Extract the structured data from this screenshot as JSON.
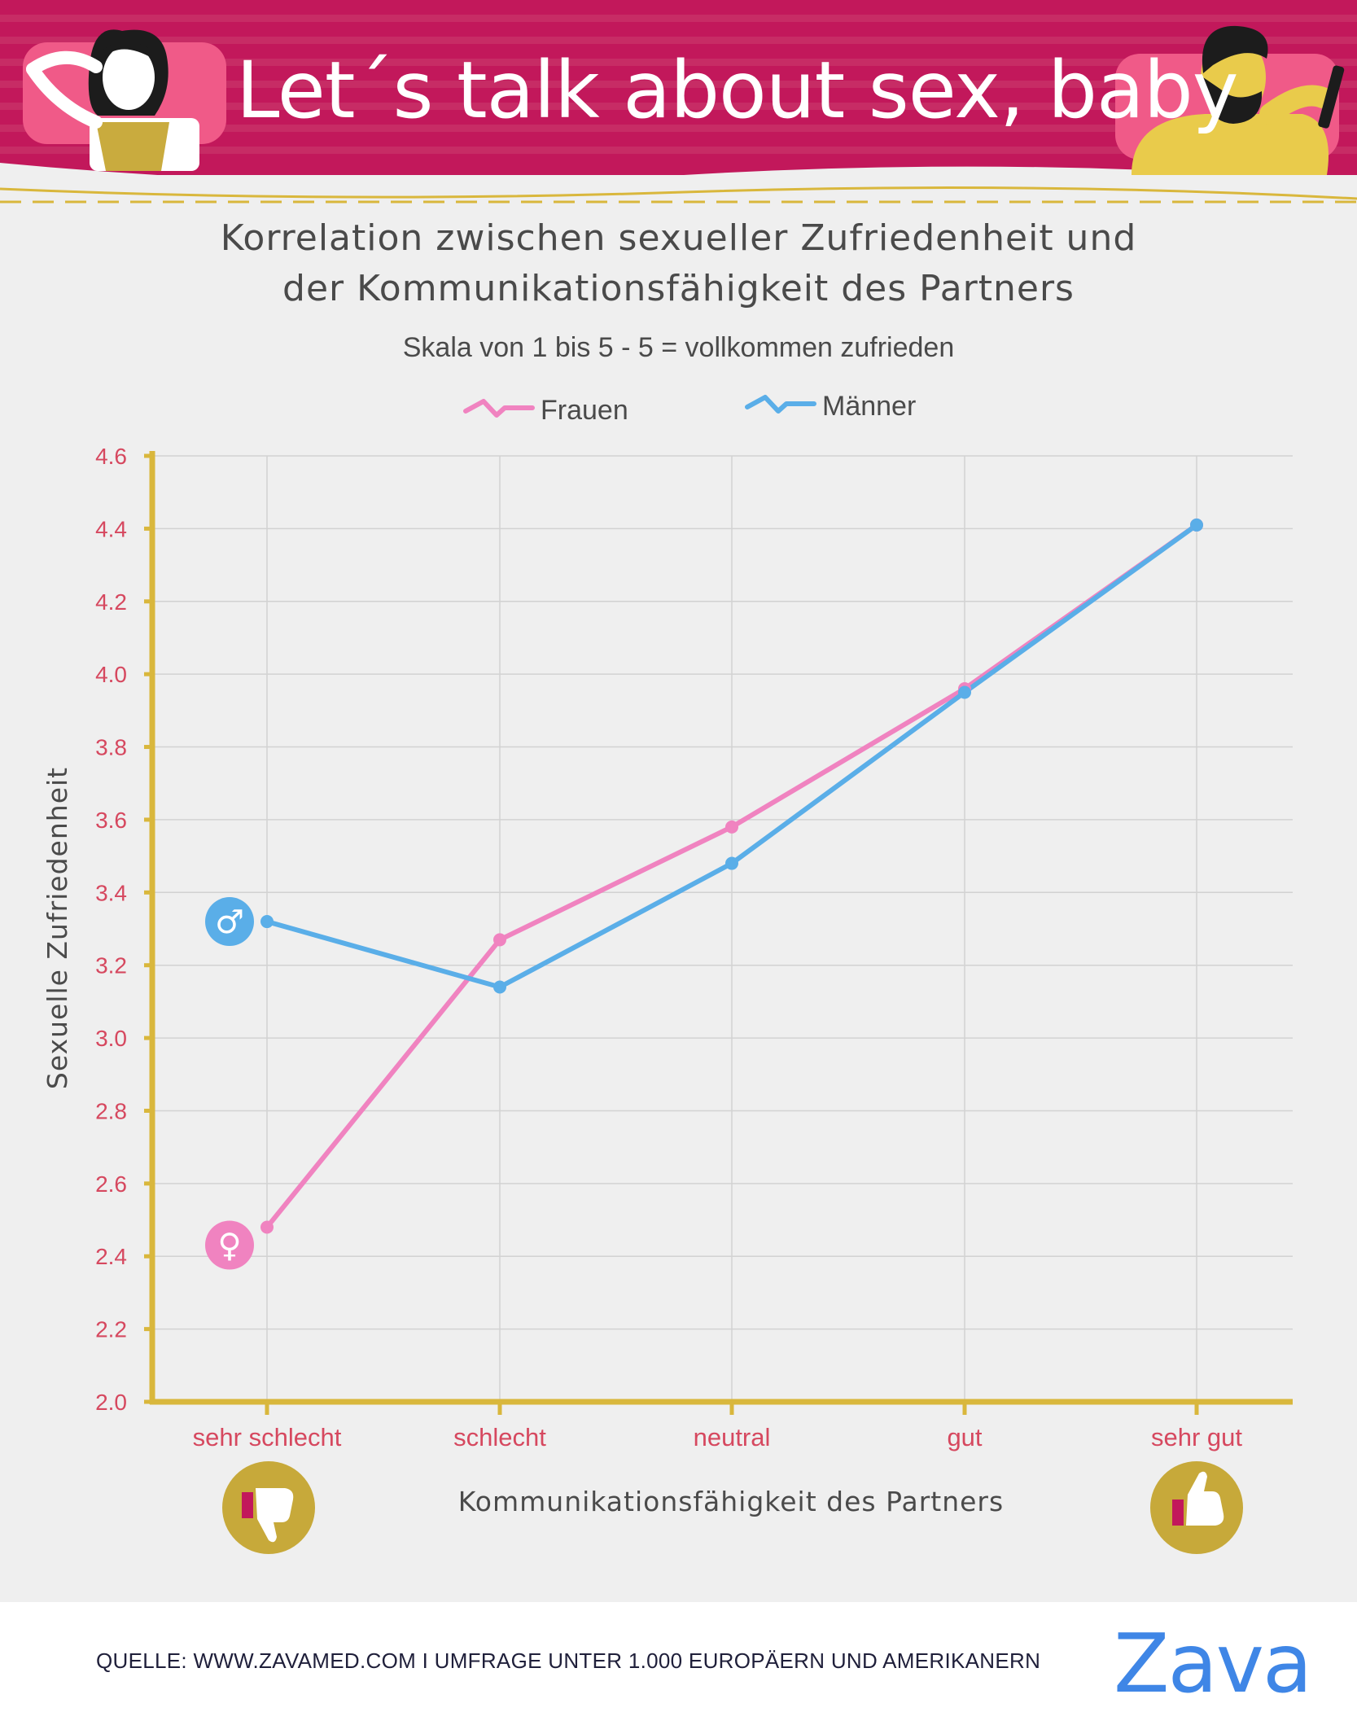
{
  "header": {
    "headline": "Let´s talk about sex, baby"
  },
  "chart_data": {
    "type": "line",
    "title_lines": [
      "Korrelation zwischen sexueller Zufriedenheit und",
      "der Kommunikationsfähigkeit des Partners"
    ],
    "subtitle": "Skala von 1 bis 5 - 5 = vollkommen zufrieden",
    "xlabel": "Kommunikationsfähigkeit des Partners",
    "ylabel": "Sexuelle Zufriedenheit",
    "categories": [
      "sehr schlecht",
      "schlecht",
      "neutral",
      "gut",
      "sehr gut"
    ],
    "ylim": [
      2.0,
      4.6
    ],
    "yticks": [
      "2.0",
      "2.2",
      "2.4",
      "2.6",
      "2.8",
      "3.0",
      "3.2",
      "3.4",
      "3.6",
      "3.8",
      "4.0",
      "4.2",
      "4.4",
      "4.6"
    ],
    "grid": true,
    "legend_position": "top",
    "series": [
      {
        "name": "Frauen",
        "color": "#f083c0",
        "symbol": "♀",
        "values": [
          2.48,
          3.27,
          3.58,
          3.96,
          4.41
        ]
      },
      {
        "name": "Männer",
        "color": "#5aaee8",
        "symbol": "♂",
        "values": [
          3.32,
          3.14,
          3.48,
          3.95,
          4.41
        ]
      }
    ]
  },
  "footer": {
    "source": "QUELLE: WWW.ZAVAMED.COM I UMFRAGE UNTER 1.000 EUROPÄERN UND AMERIKANERN",
    "logo": "Zava"
  },
  "colors": {
    "banner": "#c2185b",
    "axis": "#d9b73c",
    "tick_label": "#d6485f",
    "text": "#4a4a4a",
    "background": "#efefef"
  }
}
